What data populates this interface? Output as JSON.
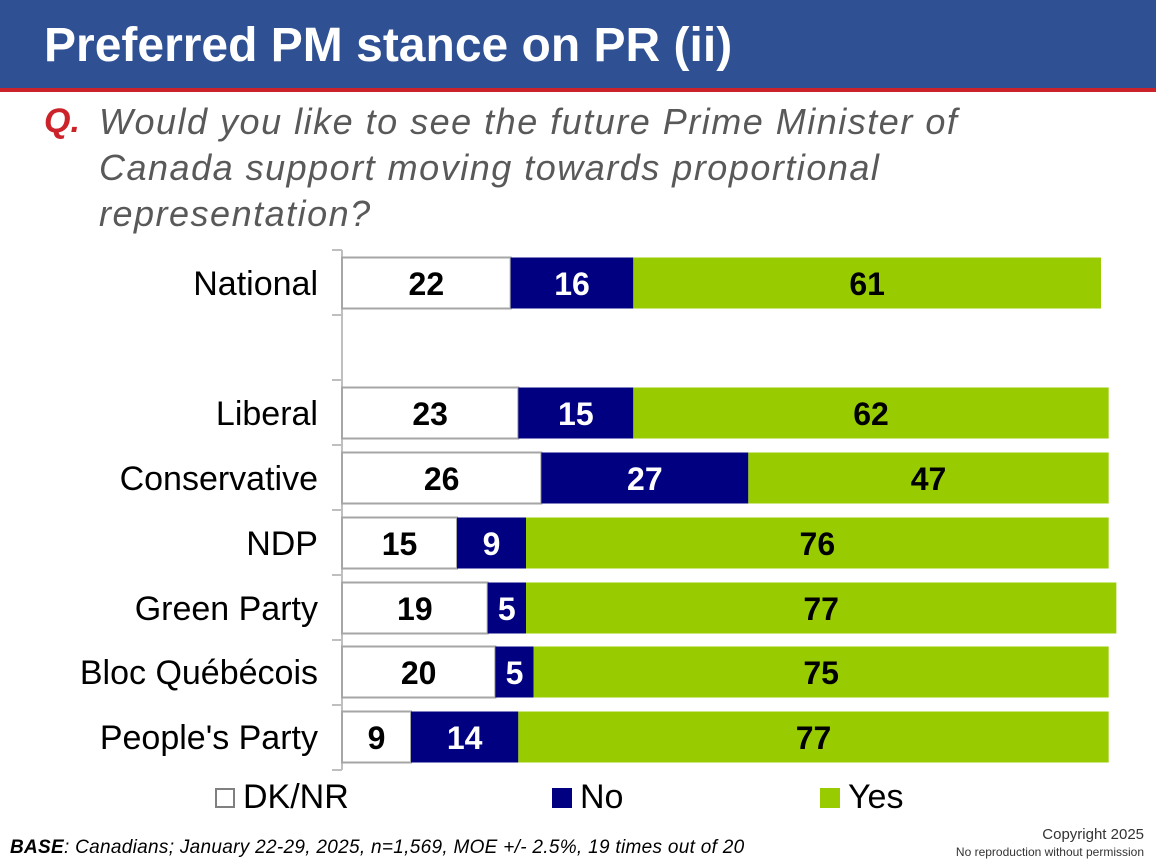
{
  "header": {
    "title": "Preferred PM stance on PR (ii)"
  },
  "question": {
    "marker": "Q.",
    "text": "Would you like to see the future Prime Minister of Canada support moving towards proportional representation?"
  },
  "colors": {
    "header_bg": "#2f5194",
    "header_rule": "#cc2229",
    "dk_nr": "#ffffff",
    "no": "#000080",
    "yes": "#99cc00"
  },
  "chart_data": {
    "type": "bar",
    "orientation": "horizontal",
    "stacked": true,
    "categories": [
      "National",
      "Liberal",
      "Conservative",
      "NDP",
      "Green Party",
      "Bloc Québécois",
      "People's Party"
    ],
    "series": [
      {
        "name": "DK/NR",
        "color": "#ffffff",
        "values": [
          22,
          23,
          26,
          15,
          19,
          20,
          9
        ]
      },
      {
        "name": "No",
        "color": "#000080",
        "values": [
          16,
          15,
          27,
          9,
          5,
          5,
          14
        ]
      },
      {
        "name": "Yes",
        "color": "#99cc00",
        "values": [
          61,
          62,
          47,
          76,
          77,
          75,
          77
        ]
      }
    ],
    "xlim": [
      0,
      99
    ],
    "grid": false,
    "data_labels": true,
    "legend_position": "bottom"
  },
  "legend": [
    {
      "label": "DK/NR",
      "color": "#ffffff"
    },
    {
      "label": "No",
      "color": "#000080"
    },
    {
      "label": "Yes",
      "color": "#99cc00"
    }
  ],
  "footer": {
    "base_label": "BASE",
    "base_text": ": Canadians; January 22-29, 2025, n=1,569, MOE +/- 2.5%, 19 times out of 20",
    "copyright_line1": "Copyright 2025",
    "copyright_line2": "No reproduction without permission"
  }
}
